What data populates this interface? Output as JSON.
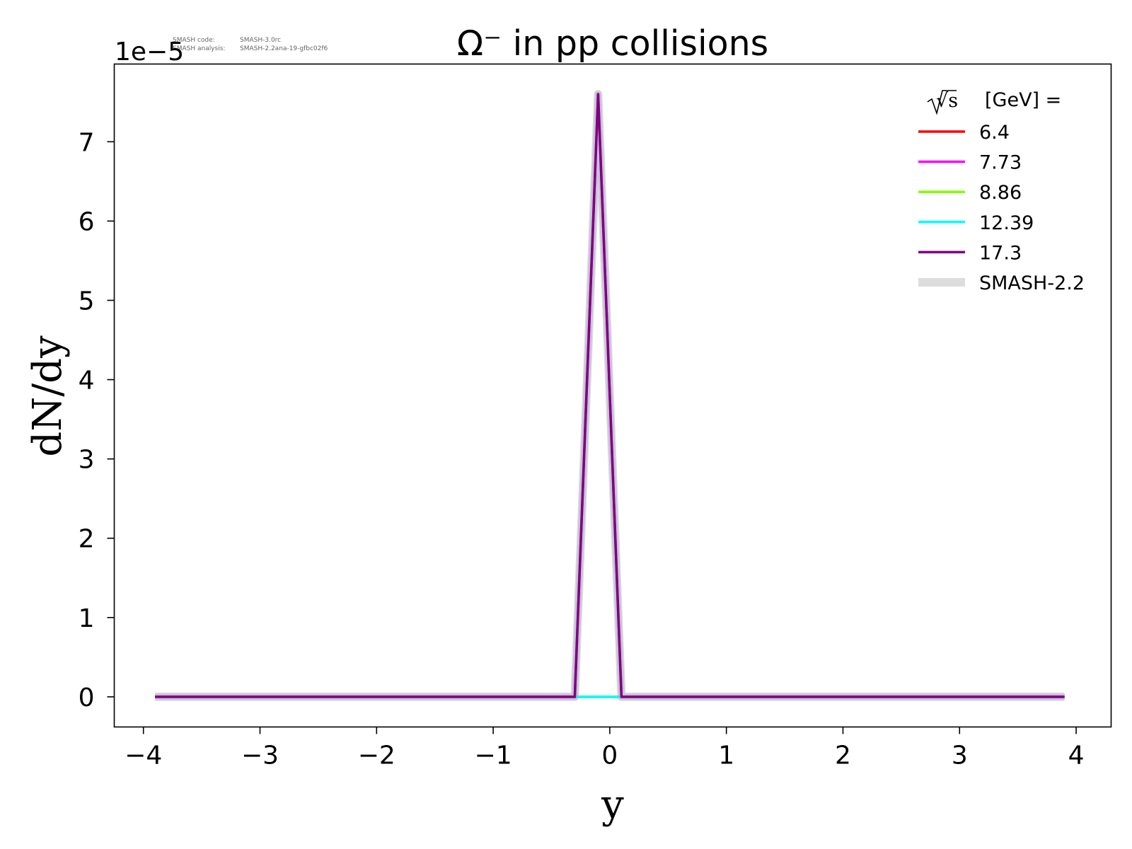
{
  "code_info": {
    "code_label": "SMASH code:",
    "code_value": "SMASH-3.0rc",
    "analysis_label": "SMASH analysis:",
    "analysis_value": "SMASH-2.2ana-19-gfbc02f6"
  },
  "chart_data": {
    "type": "line",
    "title": "Ω⁻ in pp collisions",
    "xlabel": "y",
    "ylabel": "dN/dy",
    "y_offset_text": "1e−5",
    "y_scale_factor": 1e-05,
    "xlim": [
      -4.25,
      4.3
    ],
    "ylim": [
      -3.8e-06,
      7.98e-05
    ],
    "xticks": [
      -4,
      -3,
      -2,
      -1,
      0,
      1,
      2,
      3,
      4
    ],
    "xtick_labels": [
      "−4",
      "−3",
      "−2",
      "−1",
      "0",
      "1",
      "2",
      "3",
      "4"
    ],
    "yticks": [
      0,
      1e-05,
      2e-05,
      3e-05,
      4e-05,
      5e-05,
      6e-05,
      7e-05
    ],
    "ytick_labels": [
      "0",
      "1",
      "2",
      "3",
      "4",
      "5",
      "6",
      "7"
    ],
    "grid": false,
    "legend": {
      "placement": "top-right",
      "title_sqrt": "√s",
      "title_rest": "[GeV] ="
    },
    "series": [
      {
        "name": "6.4",
        "color": "#ff0000",
        "x": [
          -3.9,
          3.9
        ],
        "y": [
          0,
          0
        ]
      },
      {
        "name": "7.73",
        "color": "#ff00ff",
        "x": [
          -3.9,
          3.9
        ],
        "y": [
          0,
          0
        ]
      },
      {
        "name": "8.86",
        "color": "#7fff00",
        "x": [
          -3.9,
          3.9
        ],
        "y": [
          0,
          0
        ]
      },
      {
        "name": "12.39",
        "color": "#00ffff",
        "x": [
          -3.9,
          -0.3,
          0.1,
          3.9
        ],
        "y": [
          0,
          0,
          0,
          0
        ]
      },
      {
        "name": "17.3",
        "color": "#800080",
        "x": [
          -3.9,
          -0.3,
          -0.1,
          0.1,
          3.9
        ],
        "y": [
          0,
          0,
          7.6e-05,
          0,
          0
        ]
      }
    ],
    "reference_series": {
      "name": "SMASH-2.2",
      "color": "#dddddd",
      "x": [
        -3.9,
        -0.3,
        -0.1,
        0.1,
        3.9
      ],
      "y": [
        0,
        0,
        7.6e-05,
        0,
        0
      ]
    }
  }
}
